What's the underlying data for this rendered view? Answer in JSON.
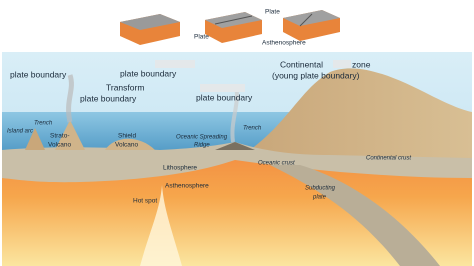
{
  "top_figure": {
    "labels": [
      "Plate",
      "Plate",
      "Asthenosphere"
    ]
  },
  "main_figure": {
    "labels": [
      "plate boundary",
      "plate boundary",
      "Transform",
      "plate boundary",
      "plate boundary",
      "Continental",
      "zone",
      "(young plate boundary)",
      "Trench",
      "Island arc",
      "Strato-",
      "Volcano",
      "Shield",
      "Volcano",
      "Oceanic Spreading",
      "Ridge",
      "Trench",
      "Lithosphere",
      "Oceanic crust",
      "Continental crust",
      "Asthenosphere",
      "Hot spot",
      "Subducting",
      "plate"
    ]
  }
}
